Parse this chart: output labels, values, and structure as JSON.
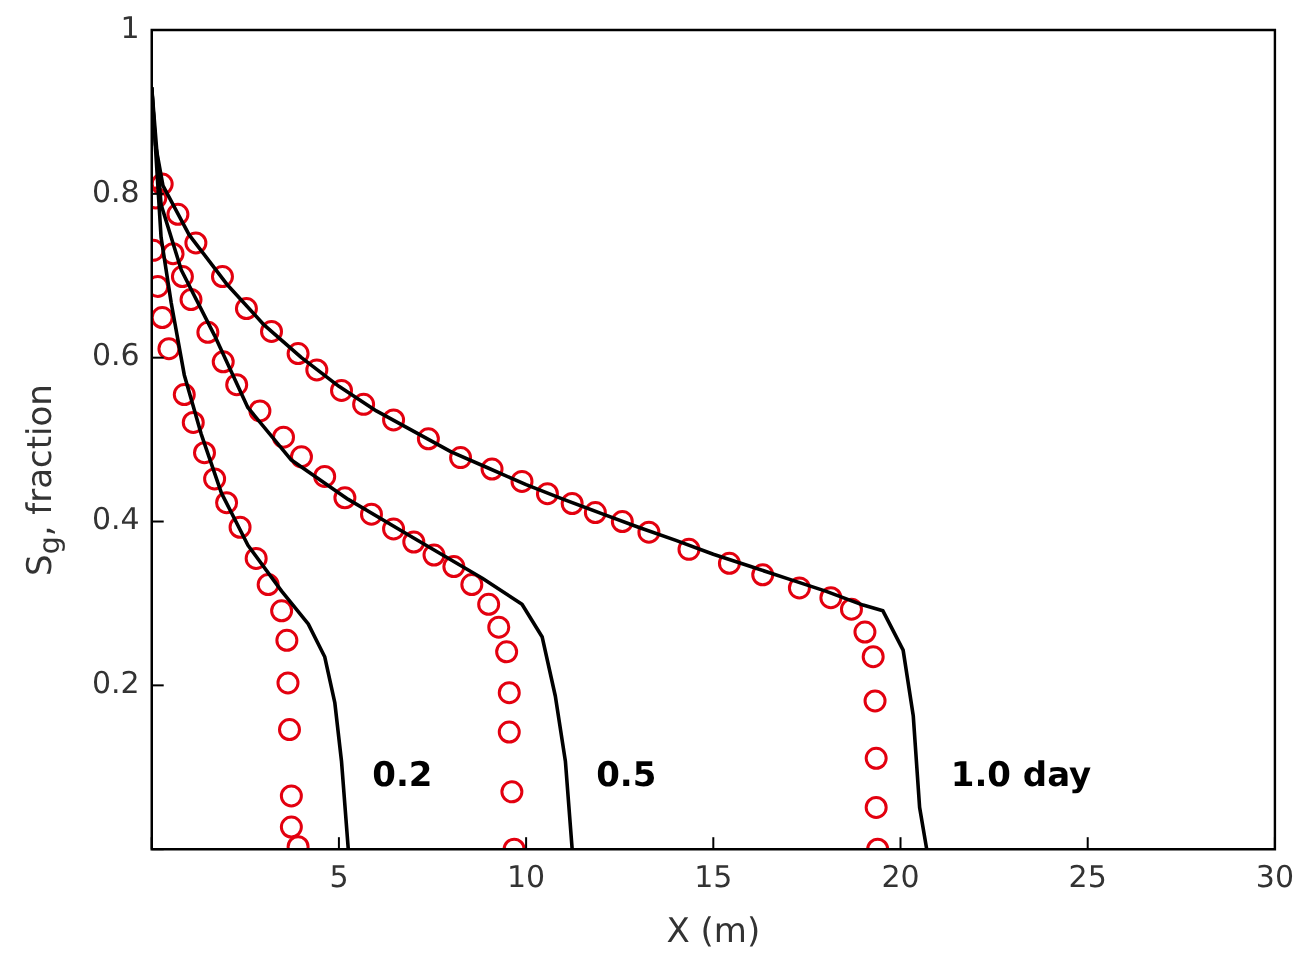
{
  "chart_data": {
    "type": "line",
    "xlabel": "X (m)",
    "ylabel": "S$_{g}$, fraction",
    "xlim": [
      0,
      30
    ],
    "xticks": [
      {
        "value": 0,
        "label": null
      },
      5,
      10,
      15,
      20,
      25,
      30
    ],
    "ylim": [
      0,
      1
    ],
    "yticks": [
      {
        "value": 0,
        "label": null
      },
      0.2,
      0.4,
      0.6,
      0.8,
      1
    ],
    "grid": false,
    "legend": false,
    "series": [
      {
        "type": "line",
        "marker": "none",
        "line_style": "solid",
        "color": "#000000",
        "x": [
          0,
          0.25,
          0.52,
          0.87,
          1.32,
          1.86,
          2.57,
          3.47,
          4.18,
          4.62,
          4.89,
          5.07,
          5.25
        ],
        "values": [
          0.93,
          0.747,
          0.667,
          0.579,
          0.507,
          0.435,
          0.371,
          0.315,
          0.275,
          0.235,
          0.179,
          0.107,
          0
        ]
      },
      {
        "type": "line",
        "marker": "none",
        "line_style": "solid",
        "color": "#000000",
        "x": [
          0,
          0.25,
          0.79,
          1.68,
          2.57,
          3.73,
          5.25,
          7.03,
          8.82,
          9.89,
          10.43,
          10.78,
          11.05,
          11.23
        ],
        "values": [
          0.93,
          0.787,
          0.707,
          0.627,
          0.539,
          0.475,
          0.427,
          0.379,
          0.331,
          0.299,
          0.259,
          0.187,
          0.107,
          0
        ]
      },
      {
        "type": "line",
        "marker": "none",
        "line_style": "solid",
        "color": "#000000",
        "x": [
          0,
          0.1,
          0.3,
          1,
          2,
          3,
          4,
          5,
          6,
          7,
          8,
          9,
          10,
          11,
          12,
          13,
          14,
          15,
          16,
          17,
          18,
          19,
          19.53,
          20.07,
          20.34,
          20.51,
          20.7
        ],
        "values": [
          0.93,
          0.86,
          0.81,
          0.75,
          0.69,
          0.64,
          0.6,
          0.565,
          0.535,
          0.51,
          0.485,
          0.465,
          0.445,
          0.427,
          0.41,
          0.393,
          0.377,
          0.36,
          0.345,
          0.33,
          0.315,
          0.298,
          0.291,
          0.243,
          0.163,
          0.051,
          0
        ]
      },
      {
        "type": "scatter",
        "marker": "circle",
        "color": "#e3000f",
        "x": [
          0.04,
          0.16,
          0.28,
          0.46,
          0.87,
          1.11,
          1.41,
          1.68,
          2,
          2.36,
          2.79,
          3.11,
          3.47,
          3.61,
          3.64,
          3.68,
          3.73,
          3.73,
          3.91
        ],
        "values": [
          0.731,
          0.687,
          0.649,
          0.611,
          0.555,
          0.521,
          0.484,
          0.452,
          0.423,
          0.393,
          0.355,
          0.323,
          0.291,
          0.255,
          0.203,
          0.146,
          0.065,
          0.027,
          0.003
        ]
      },
      {
        "type": "scatter",
        "marker": "circle",
        "color": "#e3000f",
        "x": [
          0.11,
          0.57,
          0.82,
          1.05,
          1.5,
          1.91,
          2.27,
          2.89,
          3.52,
          4,
          4.62,
          5.16,
          5.87,
          6.46,
          7,
          7.54,
          8.07,
          8.55,
          9,
          9.27,
          9.48,
          9.55,
          9.55,
          9.62,
          9.68
        ],
        "values": [
          0.795,
          0.727,
          0.699,
          0.671,
          0.631,
          0.595,
          0.567,
          0.535,
          0.503,
          0.479,
          0.455,
          0.429,
          0.409,
          0.391,
          0.375,
          0.359,
          0.345,
          0.323,
          0.299,
          0.271,
          0.241,
          0.191,
          0.143,
          0.07,
          0
        ]
      },
      {
        "type": "scatter",
        "marker": "circle",
        "color": "#e3000f",
        "x": [
          0.28,
          0.7,
          1.18,
          1.89,
          2.53,
          3.2,
          3.91,
          4.41,
          5.07,
          5.66,
          6.46,
          7.39,
          8.25,
          9.09,
          9.89,
          10.57,
          11.23,
          11.85,
          12.57,
          13.28,
          14.35,
          15.43,
          16.32,
          17.3,
          18.14,
          18.69,
          19.05,
          19.27,
          19.32,
          19.35,
          19.35,
          19.39
        ],
        "values": [
          0.812,
          0.775,
          0.74,
          0.699,
          0.66,
          0.632,
          0.605,
          0.585,
          0.56,
          0.543,
          0.524,
          0.501,
          0.478,
          0.464,
          0.449,
          0.434,
          0.422,
          0.411,
          0.4,
          0.387,
          0.366,
          0.349,
          0.335,
          0.319,
          0.307,
          0.293,
          0.265,
          0.235,
          0.181,
          0.111,
          0.051,
          0
        ]
      }
    ],
    "annotations": [
      "0.2",
      "0.5",
      "1.0 day"
    ]
  }
}
